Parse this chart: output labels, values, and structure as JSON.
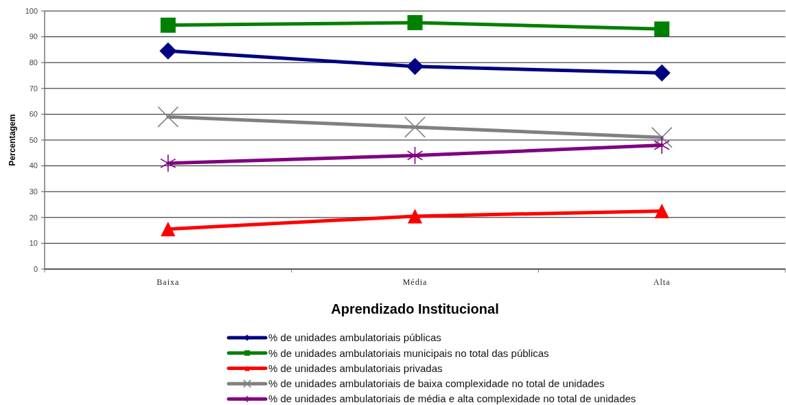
{
  "chart_data": {
    "type": "line",
    "xlabel": "Aprendizado Institucional",
    "ylabel": "Percentagem",
    "categories": [
      "Baixa",
      "Média",
      "Alta"
    ],
    "ylim": [
      0,
      100
    ],
    "yticks": [
      0,
      10,
      20,
      30,
      40,
      50,
      60,
      70,
      80,
      90,
      100
    ],
    "grid": "y",
    "legend": "bottom",
    "series": [
      {
        "name": "% de unidades ambulatoriais públicas",
        "color": "#000080",
        "marker": "diamond",
        "values": [
          84.5,
          78.5,
          76
        ]
      },
      {
        "name": "% de unidades ambulatoriais municipais no total das públicas",
        "color": "#008000",
        "marker": "square",
        "values": [
          94.5,
          95.5,
          93
        ]
      },
      {
        "name": "% de unidades ambulatoriais privadas",
        "color": "#ff0000",
        "marker": "triangle",
        "values": [
          15.5,
          20.5,
          22.5
        ]
      },
      {
        "name": "% de unidades ambulatoriais de baixa complexidade no total de unidades",
        "color": "#808080",
        "marker": "cross",
        "values": [
          59,
          55,
          51
        ]
      },
      {
        "name": "% de unidades ambulatoriais de média e alta complexidade no total de unidades",
        "color": "#800080",
        "marker": "star",
        "values": [
          41,
          44,
          48
        ]
      }
    ]
  }
}
